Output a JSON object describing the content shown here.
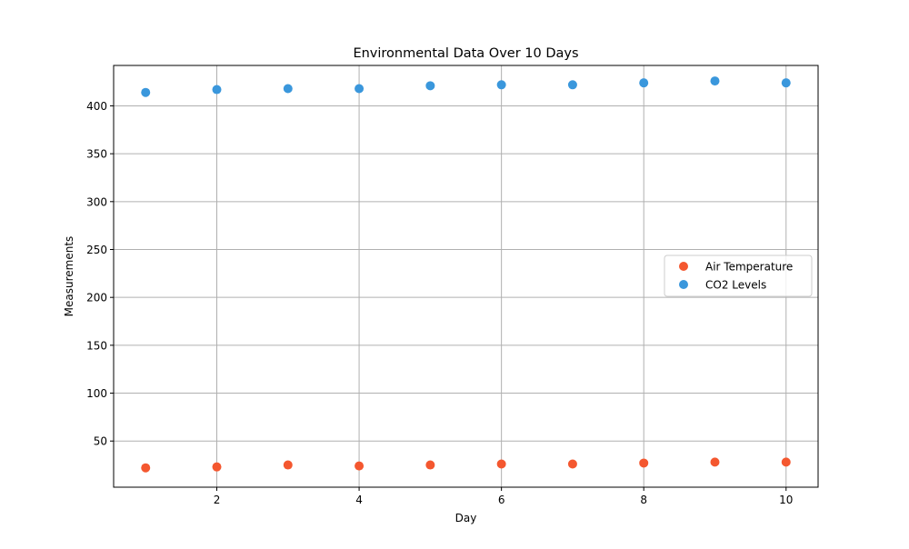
{
  "chart_data": {
    "type": "scatter",
    "title": "Environmental Data Over 10 Days",
    "xlabel": "Day",
    "ylabel": "Measurements",
    "xlim": [
      0.55,
      10.45
    ],
    "ylim": [
      1.8,
      442.2
    ],
    "x_ticks": [
      2,
      4,
      6,
      8,
      10
    ],
    "y_ticks": [
      50,
      100,
      150,
      200,
      250,
      300,
      350,
      400
    ],
    "grid": true,
    "legend_position": "center-right",
    "x": [
      1,
      2,
      3,
      4,
      5,
      6,
      7,
      8,
      9,
      10
    ],
    "series": [
      {
        "name": "Air Temperature",
        "color": "#f4572f",
        "values": [
          22,
          23,
          25,
          24,
          25,
          26,
          26,
          27,
          28,
          28
        ]
      },
      {
        "name": "CO2 Levels",
        "color": "#3a97dc",
        "values": [
          414,
          417,
          418,
          418,
          421,
          422,
          422,
          424,
          426,
          424
        ]
      }
    ]
  }
}
